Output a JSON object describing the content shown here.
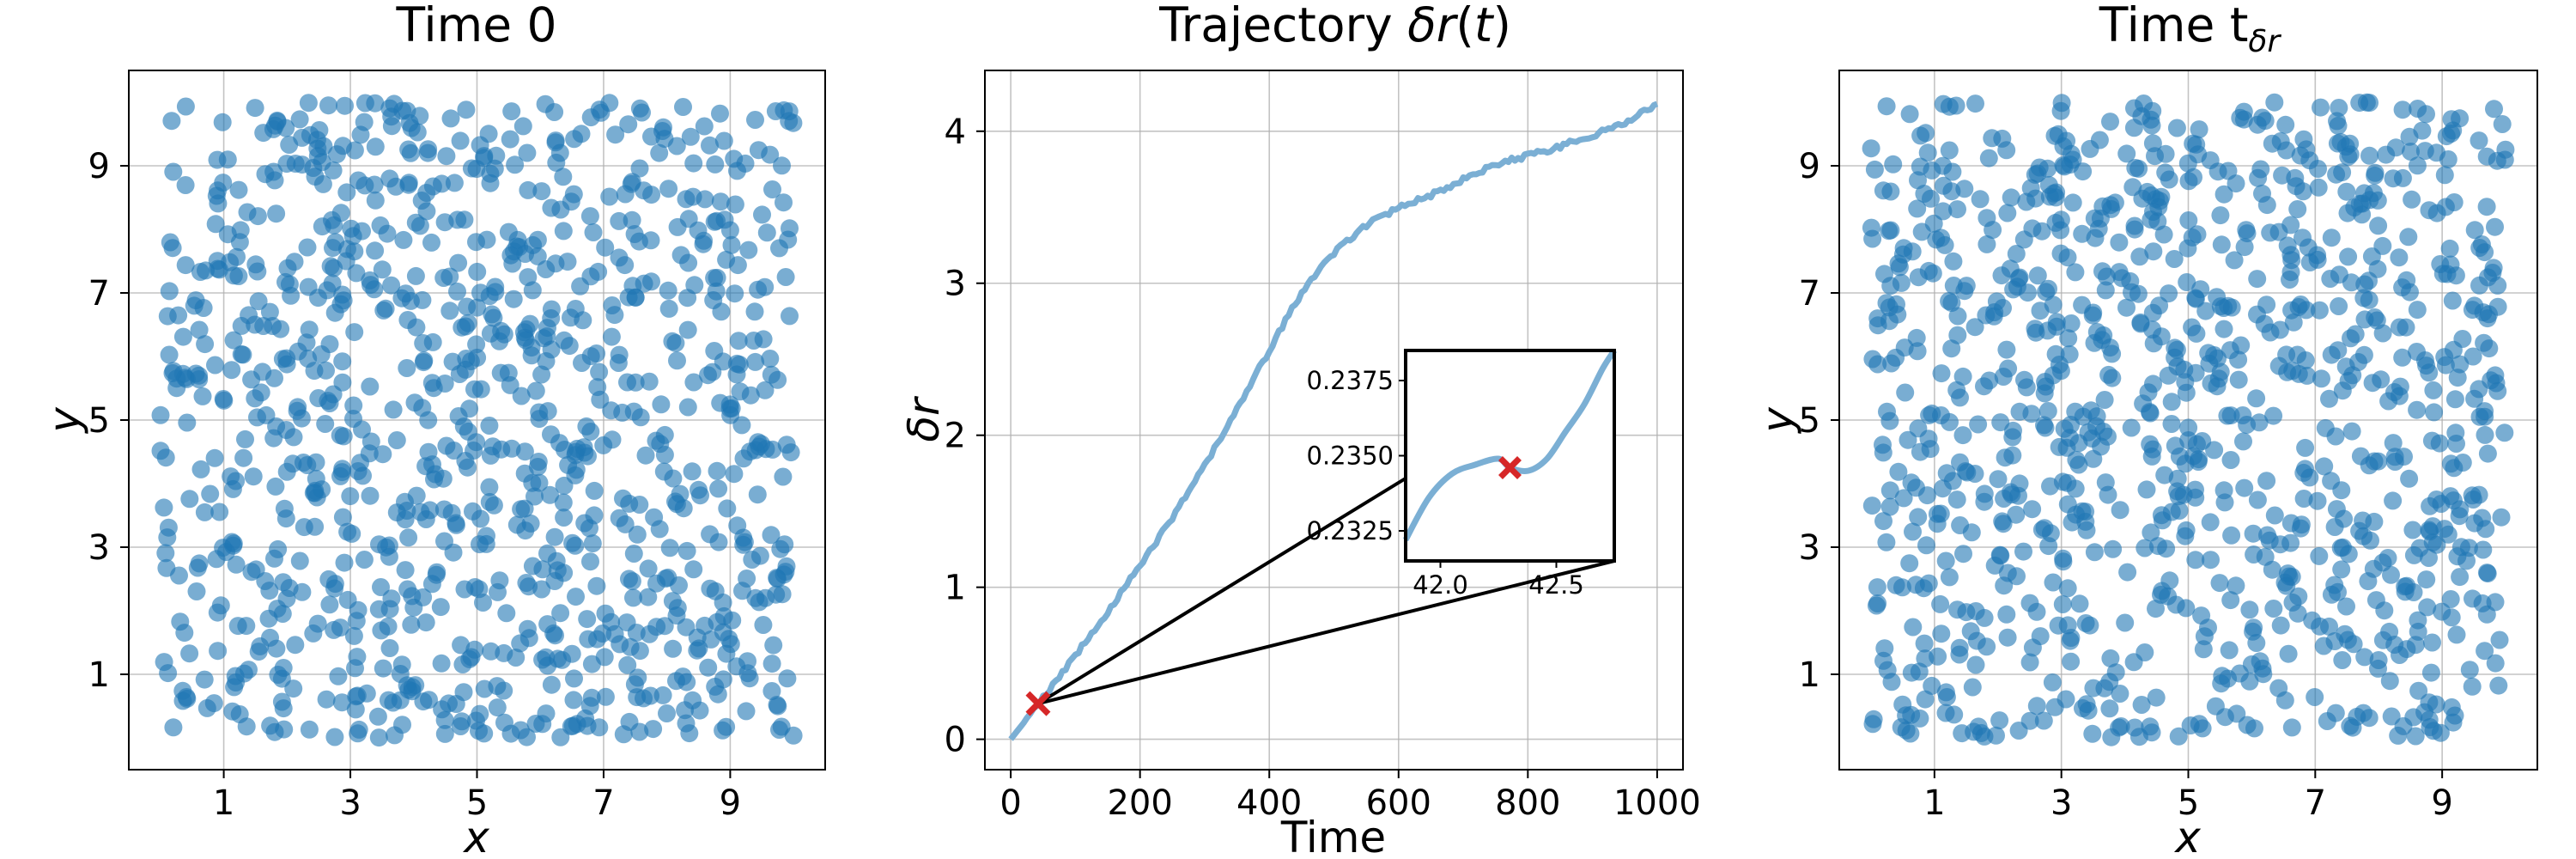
{
  "colors": {
    "series": "#1f77b4",
    "line": "#7bafd4",
    "marker": "#d62728"
  },
  "chart_data": [
    {
      "type": "scatter",
      "title": "Time 0",
      "xlabel": "x",
      "ylabel": "y",
      "xlim": [
        -0.5,
        10.5
      ],
      "ylim": [
        -0.5,
        10.5
      ],
      "xticks": [
        1,
        3,
        5,
        7,
        9
      ],
      "yticks": [
        1,
        3,
        5,
        7,
        9
      ],
      "grid": true,
      "n_points": 1000,
      "x_range": [
        0,
        10
      ],
      "y_range": [
        0,
        10
      ],
      "distribution": "uniform random",
      "alpha": 0.6
    },
    {
      "type": "line",
      "title": "Trajectory δr(t)",
      "xlabel": "Time",
      "ylabel": "δr",
      "xlim": [
        -40,
        1040
      ],
      "ylim": [
        -0.2,
        4.4
      ],
      "xticks": [
        0,
        200,
        400,
        600,
        800,
        1000
      ],
      "yticks": [
        0,
        1,
        2,
        3,
        4
      ],
      "grid": true,
      "x": [
        0,
        50,
        100,
        150,
        200,
        250,
        300,
        350,
        400,
        450,
        500,
        550,
        600,
        650,
        700,
        750,
        800,
        850,
        900,
        950,
        1000
      ],
      "y": [
        0.0,
        0.27,
        0.55,
        0.84,
        1.14,
        1.46,
        1.8,
        2.17,
        2.56,
        2.94,
        3.2,
        3.38,
        3.5,
        3.58,
        3.68,
        3.78,
        3.84,
        3.9,
        3.97,
        4.06,
        4.18
      ],
      "marked_point": {
        "x": 42.3,
        "y": 0.2346,
        "marker": "x"
      },
      "inset": {
        "xlim": [
          41.85,
          42.75
        ],
        "ylim": [
          0.2315,
          0.2385
        ],
        "xticks": [
          42.0,
          42.5
        ],
        "yticks": [
          0.2325,
          0.235,
          0.2375
        ],
        "xtick_labels": [
          "42.0",
          "42.5"
        ],
        "ytick_labels": [
          "0.2325",
          "0.2350",
          "0.2375"
        ],
        "x": [
          41.85,
          41.95,
          42.05,
          42.15,
          42.25,
          42.3,
          42.38,
          42.46,
          42.54,
          42.62,
          42.7,
          42.75
        ],
        "y": [
          0.2322,
          0.2336,
          0.2344,
          0.2347,
          0.2349,
          0.2346,
          0.2345,
          0.2349,
          0.2358,
          0.2367,
          0.2379,
          0.2385
        ]
      }
    },
    {
      "type": "scatter",
      "title": "Time t",
      "title_subscript": "δr",
      "xlabel": "x",
      "ylabel": "y",
      "xlim": [
        -0.5,
        10.5
      ],
      "ylim": [
        -0.5,
        10.5
      ],
      "xticks": [
        1,
        3,
        5,
        7,
        9
      ],
      "yticks": [
        1,
        3,
        5,
        7,
        9
      ],
      "grid": true,
      "n_points": 1000,
      "x_range": [
        0,
        10
      ],
      "y_range": [
        0,
        10
      ],
      "distribution": "uniform random",
      "alpha": 0.6
    }
  ]
}
